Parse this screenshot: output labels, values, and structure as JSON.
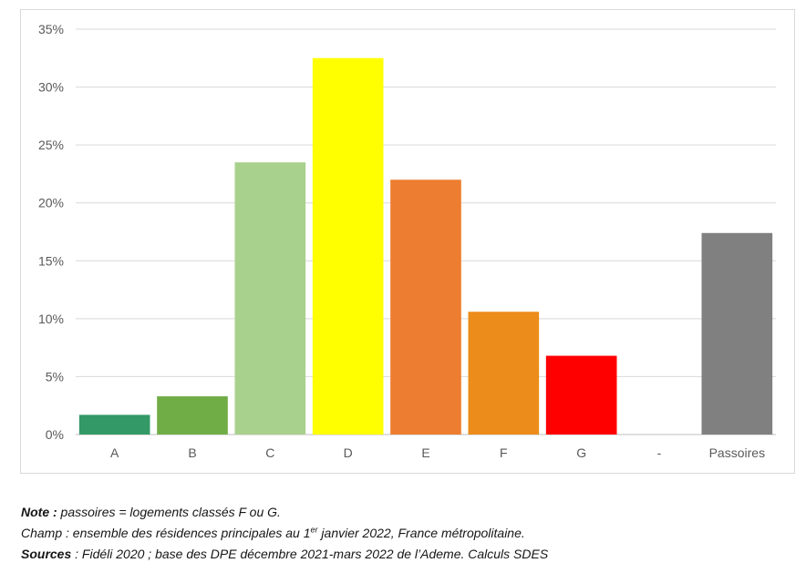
{
  "chart_data": {
    "type": "bar",
    "categories": [
      "A",
      "B",
      "C",
      "D",
      "E",
      "F",
      "G",
      "-",
      "Passoires"
    ],
    "values": [
      1.7,
      3.3,
      23.5,
      32.5,
      22.0,
      10.6,
      6.8,
      null,
      17.4
    ],
    "colors": [
      "#339966",
      "#70ad47",
      "#a9d18e",
      "#ffff00",
      "#ed7d31",
      "#ec8c1a",
      "#ff0000",
      null,
      "#808080"
    ],
    "ylim": [
      0,
      35
    ],
    "yticks": [
      0,
      5,
      10,
      15,
      20,
      25,
      30,
      35
    ],
    "ytick_labels": [
      "0%",
      "5%",
      "10%",
      "15%",
      "20%",
      "25%",
      "30%",
      "35%"
    ],
    "y_unit": "%",
    "grid": true,
    "title": "",
    "xlabel": "",
    "ylabel": ""
  },
  "notes": {
    "note_label": "Note :",
    "note_text": " passoires = logements classés F ou G.",
    "champ_text_before": "Champ : ensemble des résidences principales au 1",
    "champ_sup": "er",
    "champ_text_after": " janvier 2022, France métropolitaine.",
    "sources_label": "Sources",
    "sources_text": " : Fidéli 2020 ; base des DPE décembre 2021-mars 2022 de l’Ademe. Calculs SDES"
  }
}
